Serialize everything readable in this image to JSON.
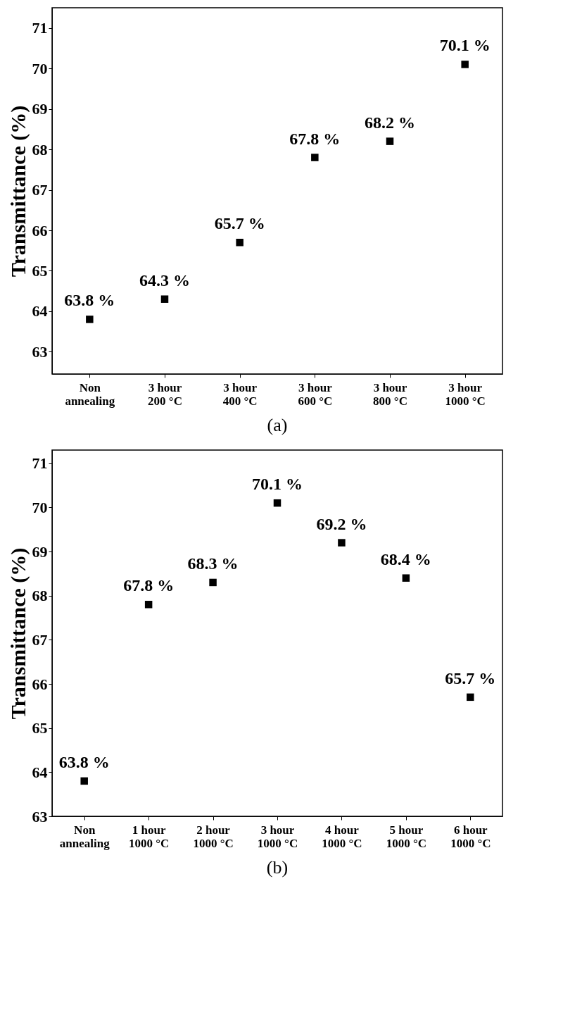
{
  "chart_data": [
    {
      "type": "scatter",
      "ylabel": "Transmittance (%)",
      "annotations": [
        "(a)"
      ],
      "categories": [
        "Non\nannealing",
        "3 hour\n200 °C",
        "3 hour\n400 °C",
        "3 hour\n600 °C",
        "3 hour\n800 °C",
        "3 hour\n1000 °C"
      ],
      "series": [
        {
          "color": "#000000",
          "values": [
            63.8,
            64.3,
            65.7,
            67.8,
            68.2,
            70.1
          ],
          "value_labels": [
            "63.8 %",
            "64.3 %",
            "65.7 %",
            "67.8 %",
            "68.2 %",
            "70.1 %"
          ]
        }
      ],
      "marker": "square",
      "ylim": [
        62.45,
        71.5
      ],
      "yticks": [
        63,
        64,
        65,
        66,
        67,
        68,
        69,
        70,
        71
      ]
    },
    {
      "type": "scatter",
      "ylabel": "Transmittance (%)",
      "annotations": [
        "(b)"
      ],
      "categories": [
        "Non\nannealing",
        "1 hour\n1000 °C",
        "2 hour\n1000 °C",
        "3 hour\n1000 °C",
        "4 hour\n1000 °C",
        "5 hour\n1000 °C",
        "6 hour\n1000 °C"
      ],
      "series": [
        {
          "color": "#000000",
          "values": [
            63.8,
            67.8,
            68.3,
            70.1,
            69.2,
            68.4,
            65.7
          ],
          "value_labels": [
            "63.8 %",
            "67.8 %",
            "68.3 %",
            "70.1 %",
            "69.2 %",
            "68.4 %",
            "65.7 %"
          ]
        }
      ],
      "marker": "square",
      "ylim": [
        63,
        71.3
      ],
      "yticks": [
        63,
        64,
        65,
        66,
        67,
        68,
        69,
        70,
        71
      ]
    }
  ]
}
